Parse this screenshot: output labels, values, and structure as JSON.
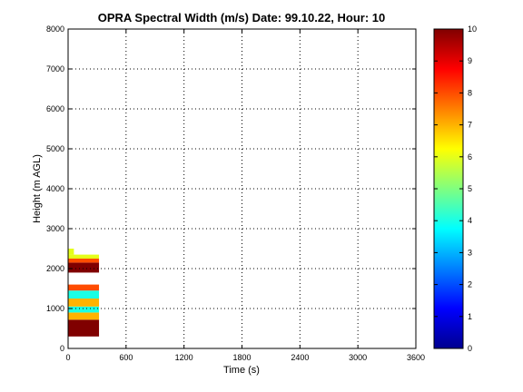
{
  "chart_data": {
    "type": "heatmap",
    "title": "OPRA Spectral Width (m/s)  Date: 99.10.22, Hour: 10",
    "xlabel": "Time (s)",
    "ylabel": "Height (m AGL)",
    "xlim": [
      0,
      3600
    ],
    "ylim": [
      0,
      8000
    ],
    "xticks": [
      "0",
      "600",
      "1200",
      "1800",
      "2400",
      "3000",
      "3600"
    ],
    "yticks": [
      "0",
      "1000",
      "2000",
      "3000",
      "4000",
      "5000",
      "6000",
      "7000",
      "8000"
    ],
    "grid": true,
    "colorbar": {
      "range": [
        0,
        10
      ],
      "ticks": [
        "0",
        "1",
        "2",
        "3",
        "4",
        "5",
        "6",
        "7",
        "8",
        "9",
        "10"
      ],
      "colormap": "jet"
    },
    "cells": [
      {
        "x0": 0,
        "x1": 320,
        "y0": 300,
        "y1": 720,
        "value": 10
      },
      {
        "x0": 0,
        "x1": 320,
        "y0": 720,
        "y1": 900,
        "value": 7
      },
      {
        "x0": 0,
        "x1": 320,
        "y0": 900,
        "y1": 1050,
        "value": 4
      },
      {
        "x0": 0,
        "x1": 320,
        "y0": 1050,
        "y1": 1250,
        "value": 7
      },
      {
        "x0": 0,
        "x1": 320,
        "y0": 1250,
        "y1": 1450,
        "value": 4
      },
      {
        "x0": 0,
        "x1": 320,
        "y0": 1450,
        "y1": 1600,
        "value": 8
      },
      {
        "x0": 0,
        "x1": 320,
        "y0": 1900,
        "y1": 2150,
        "value": 10
      },
      {
        "x0": 0,
        "x1": 320,
        "y0": 2150,
        "y1": 2250,
        "value": 8
      },
      {
        "x0": 0,
        "x1": 320,
        "y0": 2250,
        "y1": 2350,
        "value": 6
      },
      {
        "x0": 0,
        "x1": 60,
        "y0": 2350,
        "y1": 2500,
        "value": 6
      }
    ]
  }
}
